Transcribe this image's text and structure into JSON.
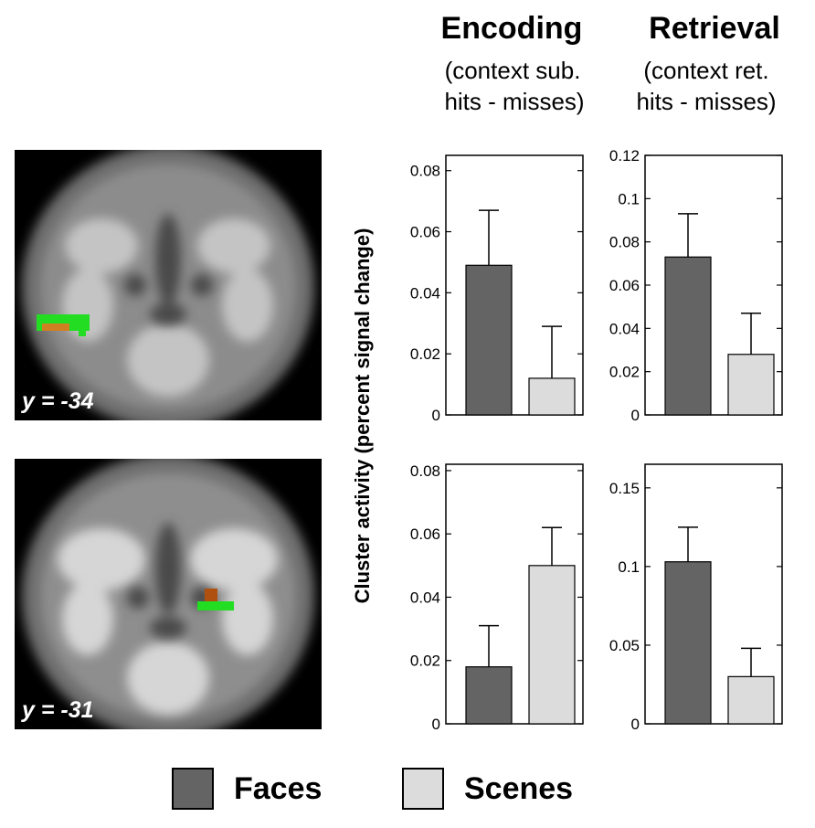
{
  "header": {
    "encoding_title": "Encoding",
    "encoding_sub_1": "(context sub.",
    "encoding_sub_2": "hits - misses)",
    "retrieval_title": "Retrieval",
    "retrieval_sub_1": "(context ret.",
    "retrieval_sub_2": "hits - misses)"
  },
  "brain_slices": [
    {
      "label": "y = -34"
    },
    {
      "label": "y = -31"
    }
  ],
  "y_axis_label": "Cluster activity (percent signal change)",
  "legend": [
    {
      "label": "Faces",
      "color": "#646464"
    },
    {
      "label": "Scenes",
      "color": "#dcdcdc"
    }
  ],
  "chart_data": [
    {
      "type": "bar",
      "panel": "top-encoding",
      "categories": [
        "Faces",
        "Scenes"
      ],
      "values": [
        0.049,
        0.012
      ],
      "errors": [
        0.018,
        0.017
      ],
      "colors": [
        "#646464",
        "#dcdcdc"
      ],
      "ylim": [
        0,
        0.085
      ],
      "yticks": [
        0,
        0.02,
        0.04,
        0.06,
        0.08
      ],
      "ytick_labels": [
        "0",
        "0.02",
        "0.04",
        "0.06",
        "0.08"
      ]
    },
    {
      "type": "bar",
      "panel": "top-retrieval",
      "categories": [
        "Faces",
        "Scenes"
      ],
      "values": [
        0.073,
        0.028
      ],
      "errors": [
        0.02,
        0.019
      ],
      "colors": [
        "#646464",
        "#dcdcdc"
      ],
      "ylim": [
        0,
        0.12
      ],
      "yticks": [
        0,
        0.02,
        0.04,
        0.06,
        0.08,
        0.1,
        0.12
      ],
      "ytick_labels": [
        "0",
        "0.02",
        "0.04",
        "0.06",
        "0.08",
        "0.1",
        "0.12"
      ]
    },
    {
      "type": "bar",
      "panel": "bottom-encoding",
      "categories": [
        "Faces",
        "Scenes"
      ],
      "values": [
        0.018,
        0.05
      ],
      "errors": [
        0.013,
        0.012
      ],
      "colors": [
        "#646464",
        "#dcdcdc"
      ],
      "ylim": [
        0,
        0.082
      ],
      "yticks": [
        0,
        0.02,
        0.04,
        0.06,
        0.08
      ],
      "ytick_labels": [
        "0",
        "0.02",
        "0.04",
        "0.06",
        "0.08"
      ]
    },
    {
      "type": "bar",
      "panel": "bottom-retrieval",
      "categories": [
        "Faces",
        "Scenes"
      ],
      "values": [
        0.103,
        0.03
      ],
      "errors": [
        0.022,
        0.018
      ],
      "colors": [
        "#646464",
        "#dcdcdc"
      ],
      "ylim": [
        0,
        0.165
      ],
      "yticks": [
        0,
        0.05,
        0.1,
        0.15
      ],
      "ytick_labels": [
        "0",
        "0.05",
        "0.1",
        "0.15"
      ]
    }
  ]
}
